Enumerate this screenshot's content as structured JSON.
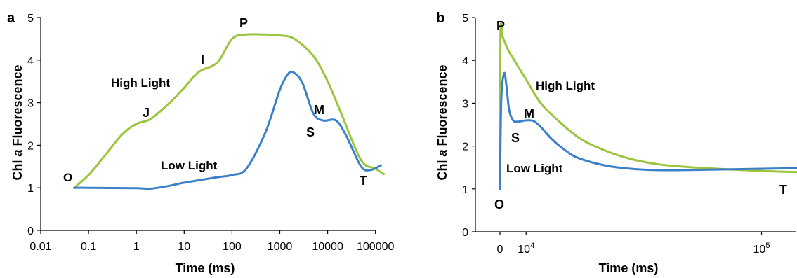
{
  "chart_data": [
    {
      "panel_label": "a",
      "type": "line",
      "xscale": "log",
      "xlabel": "Time (ms)",
      "ylabel": "Chl a Fluorescence",
      "xlim": [
        0.01,
        100000
      ],
      "ylim": [
        0,
        5
      ],
      "x_ticks": [
        "0.01",
        "0.1",
        "1",
        "10",
        "100",
        "1000",
        "10000",
        "100000"
      ],
      "y_ticks": [
        "0",
        "1",
        "2",
        "3",
        "4",
        "5"
      ],
      "grid": false,
      "series": [
        {
          "name": "High Light",
          "color": "#9bc53d",
          "x": [
            0.05,
            0.1,
            0.2,
            0.5,
            1,
            2,
            5,
            10,
            20,
            50,
            100,
            200,
            500,
            1000,
            2000,
            5000,
            10000,
            20000,
            50000,
            100000,
            150000
          ],
          "y": [
            1.0,
            1.3,
            1.7,
            2.25,
            2.5,
            2.62,
            3.0,
            3.35,
            3.72,
            3.95,
            4.5,
            4.6,
            4.6,
            4.58,
            4.5,
            4.1,
            3.5,
            2.7,
            1.65,
            1.45,
            1.32
          ]
        },
        {
          "name": "Low Light",
          "color": "#3b80c8",
          "x": [
            0.05,
            0.1,
            1,
            2,
            5,
            10,
            50,
            100,
            200,
            500,
            1000,
            1500,
            2000,
            3000,
            5000,
            8000,
            15000,
            25000,
            50000,
            80000,
            130000
          ],
          "y": [
            1.0,
            1.0,
            0.99,
            0.98,
            1.05,
            1.12,
            1.25,
            1.3,
            1.45,
            2.3,
            3.3,
            3.68,
            3.7,
            3.45,
            2.75,
            2.58,
            2.58,
            2.2,
            1.5,
            1.42,
            1.53
          ]
        }
      ],
      "annotations": [
        "O",
        "J",
        "I",
        "P",
        "S",
        "M",
        "T",
        "High Light",
        "Low Light"
      ]
    },
    {
      "panel_label": "b",
      "type": "line",
      "xscale": "linear",
      "xlabel": "Time (ms)",
      "ylabel": "Chl a Fluorescence",
      "xlim": [
        0,
        120000
      ],
      "ylim": [
        0,
        5
      ],
      "x_ticks": [
        {
          "value": 0,
          "label": "0"
        },
        {
          "value": 10000,
          "label": "10",
          "exponent": "4"
        },
        {
          "value": 100000,
          "label": "10",
          "exponent": "5"
        }
      ],
      "y_ticks": [
        "0",
        "1",
        "2",
        "3",
        "4",
        "5"
      ],
      "grid": false,
      "series": [
        {
          "name": "High Light",
          "color": "#9bc53d",
          "x": [
            0,
            200,
            1000,
            2000,
            3500,
            5000,
            7500,
            10000,
            15000,
            20000,
            30000,
            40000,
            50000,
            60000,
            70000,
            80000,
            100000,
            120000
          ],
          "y": [
            1.0,
            4.6,
            4.55,
            4.4,
            4.2,
            4.05,
            3.8,
            3.55,
            3.05,
            2.72,
            2.2,
            1.9,
            1.7,
            1.58,
            1.52,
            1.48,
            1.42,
            1.38
          ]
        },
        {
          "name": "Low Light",
          "color": "#3b80c8",
          "x": [
            0,
            500,
            1600,
            2500,
            3500,
            5000,
            7000,
            10000,
            13000,
            16000,
            20000,
            25000,
            30000,
            40000,
            50000,
            60000,
            70000,
            80000,
            90000,
            100000,
            110000,
            120000
          ],
          "y": [
            1.0,
            3.1,
            3.7,
            3.4,
            2.85,
            2.6,
            2.57,
            2.6,
            2.58,
            2.42,
            2.15,
            1.9,
            1.72,
            1.55,
            1.47,
            1.44,
            1.44,
            1.45,
            1.46,
            1.47,
            1.48,
            1.5
          ]
        }
      ],
      "annotations": [
        "P",
        "M",
        "S",
        "O",
        "T",
        "High Light",
        "Low Light"
      ]
    }
  ],
  "panels": {
    "a": {
      "letter": "a",
      "xlabel": "Time (ms)",
      "ylabel_prefix": "Chl ",
      "ylabel_italic": "a",
      "ylabel_suffix": " Fluorescence",
      "labels": {
        "O": "O",
        "J": "J",
        "I": "I",
        "P": "P",
        "S": "S",
        "M": "M",
        "T": "T",
        "high": "High Light",
        "low": "Low Light"
      }
    },
    "b": {
      "letter": "b",
      "xlabel": "Time (ms)",
      "ylabel_prefix": "Chl ",
      "ylabel_italic": "a",
      "ylabel_suffix": " Fluorescence",
      "labels": {
        "P": "P",
        "M": "M",
        "S": "S",
        "O": "O",
        "T": "T",
        "high": "High Light",
        "low": "Low Light"
      }
    }
  }
}
